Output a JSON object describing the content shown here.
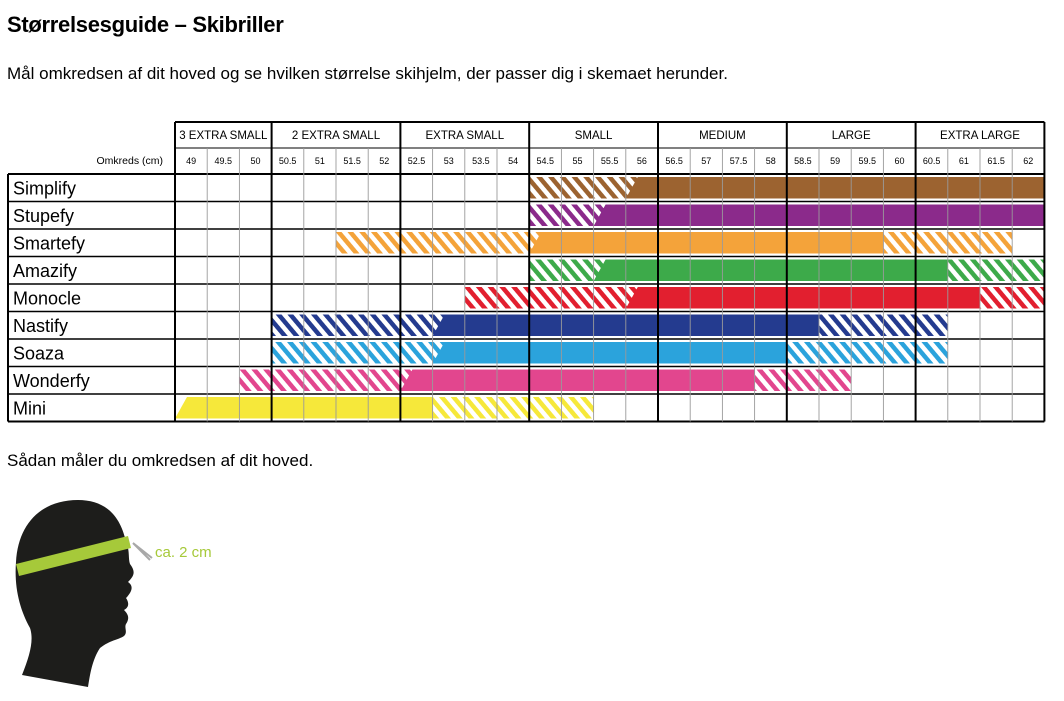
{
  "title": "Størrelsesguide – Skibriller",
  "intro": "Mål omkredsen af dit hoved og se hvilken størrelse skihjelm, der passer dig i skemaet herunder.",
  "measure_heading": "Sådan måler du omkredsen af dit hoved.",
  "measure_label": "ca. 2 cm",
  "colors": {
    "measure_band": "#a6c93a",
    "head": "#1d1d1b",
    "grid": "#000000",
    "light_grid": "#9a9a9a"
  },
  "chart_data": {
    "type": "table",
    "row_header_label": "Omkreds (cm)",
    "size_groups": [
      {
        "label": "3 EXTRA SMALL",
        "sizes": [
          "49",
          "49.5",
          "50"
        ]
      },
      {
        "label": "2 EXTRA SMALL",
        "sizes": [
          "50.5",
          "51",
          "51.5",
          "52"
        ]
      },
      {
        "label": "EXTRA SMALL",
        "sizes": [
          "52.5",
          "53",
          "53.5",
          "54"
        ]
      },
      {
        "label": "SMALL",
        "sizes": [
          "54.5",
          "55",
          "55.5",
          "56"
        ]
      },
      {
        "label": "MEDIUM",
        "sizes": [
          "56.5",
          "57",
          "57.5",
          "58"
        ]
      },
      {
        "label": "LARGE",
        "sizes": [
          "58.5",
          "59",
          "59.5",
          "60"
        ]
      },
      {
        "label": "EXTRA LARGE",
        "sizes": [
          "60.5",
          "61",
          "61.5",
          "62"
        ]
      }
    ],
    "models": [
      {
        "name": "Simplify",
        "color": "#9c6330",
        "solid": [
          56,
          62
        ],
        "hatch": [
          [
            54.5,
            56
          ]
        ]
      },
      {
        "name": "Stupefy",
        "color": "#8b2a8b",
        "solid": [
          55.5,
          62
        ],
        "hatch": [
          [
            54.5,
            55.5
          ]
        ]
      },
      {
        "name": "Smartefy",
        "color": "#f4a33a",
        "solid": [
          54.5,
          59.5
        ],
        "hatch": [
          [
            51.5,
            54.5
          ],
          [
            59.5,
            60.5
          ],
          [
            60.5,
            61.5
          ]
        ]
      },
      {
        "name": "Amazify",
        "color": "#3daa4a",
        "solid": [
          55.5,
          60.5
        ],
        "hatch": [
          [
            54.5,
            55.5
          ],
          [
            60.5,
            62
          ]
        ]
      },
      {
        "name": "Monocle",
        "color": "#e21f2f",
        "solid": [
          56,
          61
        ],
        "hatch": [
          [
            53.5,
            56
          ],
          [
            61,
            62
          ]
        ]
      },
      {
        "name": "Nastify",
        "color": "#243b8f",
        "solid": [
          53,
          58.5
        ],
        "hatch": [
          [
            50.5,
            53
          ],
          [
            58.5,
            60.5
          ]
        ]
      },
      {
        "name": "Soaza",
        "color": "#2ba3dc",
        "solid": [
          53,
          58
        ],
        "hatch": [
          [
            50.5,
            53
          ],
          [
            58,
            60.5
          ]
        ]
      },
      {
        "name": "Wonderfy",
        "color": "#e2468e",
        "solid": [
          52.5,
          57.5
        ],
        "hatch": [
          [
            50,
            52.5
          ],
          [
            57.5,
            59
          ]
        ]
      },
      {
        "name": "Mini",
        "color": "#f6e83a",
        "solid": [
          49,
          52.5
        ],
        "hatch": [
          [
            52.5,
            55
          ]
        ]
      }
    ]
  }
}
